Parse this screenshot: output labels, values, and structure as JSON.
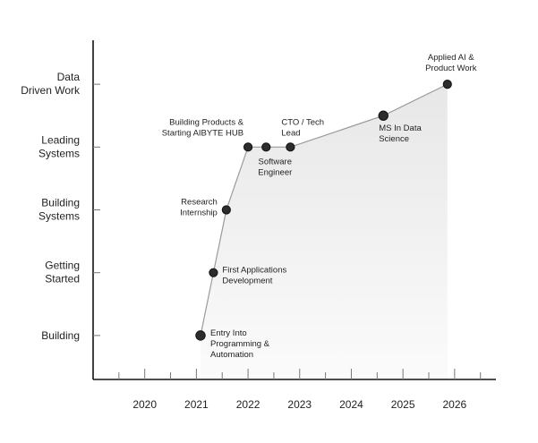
{
  "chart_data": {
    "type": "area",
    "title": "",
    "xlabel": "",
    "ylabel": "",
    "x_ticks": [
      "2020",
      "2021",
      "2022",
      "2023",
      "2024",
      "2025",
      "2026"
    ],
    "x_range": [
      2019.0,
      2026.8
    ],
    "y_levels": [
      "Building",
      "Getting Started",
      "Building Systems",
      "Leading Systems",
      "Data Driven Work"
    ],
    "y_range": [
      -0.7,
      4.7
    ],
    "points": [
      {
        "x": 2021.08,
        "y": 0.0,
        "size": "large",
        "label": "Entry Into Programming & Automation"
      },
      {
        "x": 2021.33,
        "y": 1.0,
        "size": "small",
        "label": "First Applications Development"
      },
      {
        "x": 2021.58,
        "y": 2.0,
        "size": "small",
        "label": "Research Internship"
      },
      {
        "x": 2022.0,
        "y": 3.0,
        "size": "small",
        "label": "Building Products & Starting AIBYTE HUB"
      },
      {
        "x": 2022.35,
        "y": 3.0,
        "size": "small",
        "label": "Software Engineer"
      },
      {
        "x": 2022.82,
        "y": 3.0,
        "size": "small",
        "label": "CTO / Tech Lead"
      },
      {
        "x": 2024.62,
        "y": 3.5,
        "size": "large",
        "label": "MS In Data Science"
      },
      {
        "x": 2025.86,
        "y": 4.0,
        "size": "small",
        "label": "Applied AI & Product Work"
      }
    ],
    "grid": false,
    "fill": "gradient-light-gray"
  }
}
